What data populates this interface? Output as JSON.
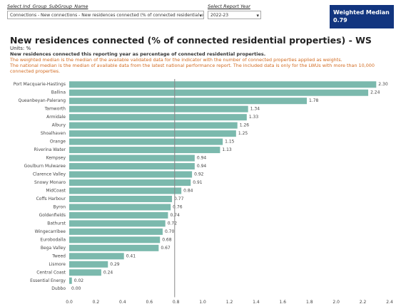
{
  "filters": [
    {
      "label": "Select Ind_Group_SubGroup_Name",
      "selected": "Connections - New connections - New residences connected (% of connected residential properties..."
    },
    {
      "label": "Select Report Year",
      "selected": "2022-23"
    }
  ],
  "kpi": {
    "label": "Weighted Median",
    "value": 0.79
  },
  "chart_data": {
    "type": "hbar",
    "title": "New residences connected (% of connected residential properties) - WS",
    "units": "Units: %",
    "subtitle": "New residences connected this reporting year as percentage of connected residential properties.",
    "notes": [
      "The weighted median is the median of the available validated data for the indicator with the number of connected properties applied as weights.",
      "The national median is the median of available data from the latest national performance report. The included data is only for the LWUs with more than 10,000 connected properties."
    ],
    "categories": [
      "Port Macquarie-Hastings",
      "Ballina",
      "Queanbeyan-Palerang",
      "Tamworth",
      "Armidale",
      "Albury",
      "Shoalhaven",
      "Orange",
      "Riverina Water",
      "Kempsey",
      "Goulburn Mulwaree",
      "Clarence Valley",
      "Snowy Monaro",
      "MidCoast",
      "Coffs Harbour",
      "Byron",
      "Goldenfields",
      "Bathurst",
      "Wingecarribee",
      "Eurobodalla",
      "Bega Valley",
      "Tweed",
      "Lismore",
      "Central Coast",
      "Essential Energy",
      "Dubbo"
    ],
    "values": [
      2.3,
      2.24,
      1.78,
      1.34,
      1.33,
      1.26,
      1.25,
      1.15,
      1.13,
      0.94,
      0.94,
      0.92,
      0.91,
      0.84,
      0.77,
      0.76,
      0.74,
      0.72,
      0.7,
      0.68,
      0.67,
      0.41,
      0.29,
      0.24,
      0.02,
      0
    ],
    "value_labels": [
      "2.30",
      "2.24",
      "1.78",
      "1.34",
      "1.33",
      "1.26",
      "1.25",
      "1.15",
      "1.13",
      "0.94",
      "0.94",
      "0.92",
      "0.91",
      "0.84",
      "0.77",
      "0.76",
      "0.74",
      "0.72",
      "0.70",
      "0.68",
      "0.67",
      "0.41",
      "0.29",
      "0.24",
      "0.02",
      "0.00"
    ],
    "color": "#7bb9ad",
    "xlim": [
      0,
      2.4
    ],
    "xticks": [
      {
        "value": 0,
        "label": "0.0"
      },
      {
        "value": 0.2,
        "label": "0.2"
      },
      {
        "value": 0.4,
        "label": "0.4"
      },
      {
        "value": 0.6,
        "label": "0.6"
      },
      {
        "value": 0.8,
        "label": "0.8"
      },
      {
        "value": 1,
        "label": "1.0"
      },
      {
        "value": 1.2,
        "label": "1.2"
      },
      {
        "value": 1.4,
        "label": "1.4"
      },
      {
        "value": 1.6,
        "label": "1.6"
      },
      {
        "value": 1.8,
        "label": "1.8"
      },
      {
        "value": 2,
        "label": "2.0"
      },
      {
        "value": 2.2,
        "label": "2.2"
      },
      {
        "value": 2.4,
        "label": "2.4"
      }
    ],
    "grid": false
  }
}
